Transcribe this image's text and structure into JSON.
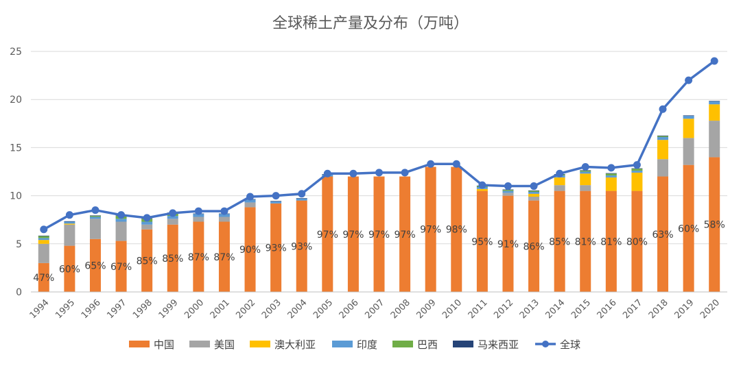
{
  "chart_data": {
    "type": "bar",
    "title": "全球稀土产量及分布（万吨）",
    "categories": [
      "1994",
      "1995",
      "1996",
      "1997",
      "1998",
      "1999",
      "2000",
      "2001",
      "2002",
      "2003",
      "2004",
      "2005",
      "2006",
      "2007",
      "2008",
      "2009",
      "2010",
      "2011",
      "2012",
      "2013",
      "2014",
      "2015",
      "2016",
      "2017",
      "2018",
      "2019",
      "2020"
    ],
    "ylim": [
      0,
      25
    ],
    "yticks": [
      0,
      5,
      10,
      15,
      20,
      25
    ],
    "grid": true,
    "legend_position": "bottom",
    "stacked_series": [
      {
        "name": "中国",
        "color": "#ED7D31",
        "values": [
          3.0,
          4.8,
          5.5,
          5.3,
          6.5,
          7.0,
          7.3,
          7.3,
          8.8,
          9.2,
          9.5,
          12.0,
          12.0,
          12.0,
          12.0,
          13.0,
          13.0,
          10.5,
          10.0,
          9.5,
          10.5,
          10.5,
          10.5,
          10.5,
          12.0,
          13.2,
          14.0
        ]
      },
      {
        "name": "美国",
        "color": "#A5A5A5",
        "values": [
          2.0,
          2.2,
          2.1,
          2.0,
          0.5,
          0.6,
          0.5,
          0.5,
          0.5,
          0.0,
          0.0,
          0.0,
          0.0,
          0.0,
          0.0,
          0.0,
          0.0,
          0.0,
          0.3,
          0.4,
          0.6,
          0.6,
          0.0,
          0.0,
          1.8,
          2.8,
          3.8
        ]
      },
      {
        "name": "澳大利亚",
        "color": "#FFC000",
        "values": [
          0.4,
          0.1,
          0.0,
          0.0,
          0.0,
          0.0,
          0.0,
          0.0,
          0.0,
          0.0,
          0.0,
          0.0,
          0.0,
          0.0,
          0.0,
          0.0,
          0.0,
          0.2,
          0.0,
          0.3,
          0.8,
          1.2,
          1.4,
          1.9,
          2.0,
          2.0,
          1.7
        ]
      },
      {
        "name": "印度",
        "color": "#5B9BD5",
        "values": [
          0.2,
          0.2,
          0.2,
          0.3,
          0.3,
          0.3,
          0.3,
          0.3,
          0.3,
          0.2,
          0.2,
          0.2,
          0.0,
          0.0,
          0.0,
          0.0,
          0.0,
          0.2,
          0.2,
          0.2,
          0.2,
          0.2,
          0.2,
          0.2,
          0.3,
          0.3,
          0.3
        ]
      },
      {
        "name": "巴西",
        "color": "#70AD47",
        "values": [
          0.2,
          0.0,
          0.1,
          0.3,
          0.3,
          0.3,
          0.0,
          0.0,
          0.0,
          0.0,
          0.0,
          0.0,
          0.0,
          0.0,
          0.0,
          0.0,
          0.0,
          0.1,
          0.1,
          0.1,
          0.1,
          0.1,
          0.2,
          0.2,
          0.1,
          0.0,
          0.0
        ]
      },
      {
        "name": "马来西亚",
        "color": "#264478",
        "values": [
          0.05,
          0.05,
          0.05,
          0.05,
          0.05,
          0.05,
          0.05,
          0.05,
          0.05,
          0.05,
          0.05,
          0.05,
          0.0,
          0.0,
          0.0,
          0.0,
          0.0,
          0.05,
          0.05,
          0.05,
          0.05,
          0.05,
          0.05,
          0.05,
          0.05,
          0.05,
          0.05
        ]
      }
    ],
    "line_series": {
      "name": "全球",
      "color": "#4472C4",
      "values": [
        6.5,
        8.0,
        8.5,
        8.0,
        7.7,
        8.2,
        8.4,
        8.4,
        9.9,
        10.0,
        10.2,
        12.3,
        12.3,
        12.4,
        12.4,
        13.3,
        13.3,
        11.1,
        11.0,
        11.0,
        12.3,
        13.0,
        12.9,
        13.2,
        19.0,
        22.0,
        24.0
      ]
    },
    "china_share_labels": [
      "47%",
      "60%",
      "65%",
      "67%",
      "85%",
      "85%",
      "87%",
      "87%",
      "90%",
      "93%",
      "93%",
      "97%",
      "97%",
      "97%",
      "97%",
      "97%",
      "98%",
      "95%",
      "91%",
      "86%",
      "85%",
      "81%",
      "81%",
      "80%",
      "63%",
      "60%",
      "58%"
    ]
  }
}
